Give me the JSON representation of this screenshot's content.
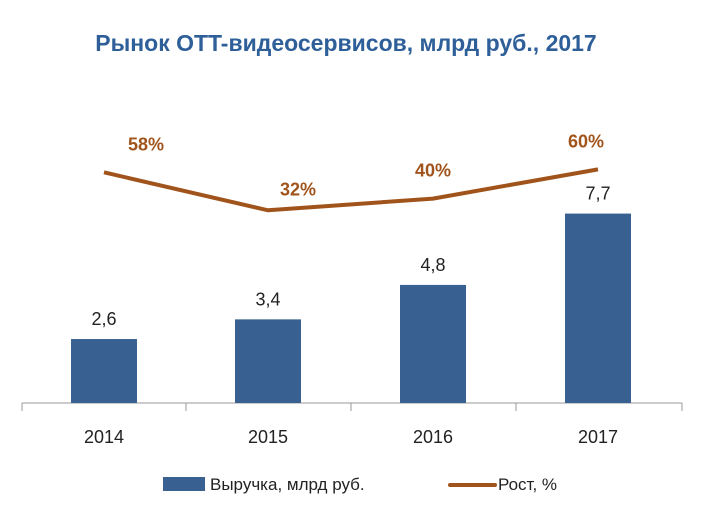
{
  "chart_data": {
    "type": "bar+line",
    "title": "Рынок OTT-видеосервисов, млрд руб., 2017",
    "categories": [
      "2014",
      "2015",
      "2016",
      "2017"
    ],
    "series": [
      {
        "name": "Выручка, млрд руб.",
        "type": "bar",
        "values": [
          2.6,
          3.4,
          4.8,
          7.7
        ],
        "labels": [
          "2,6",
          "3,4",
          "4,8",
          "7,7"
        ],
        "color": "#386192"
      },
      {
        "name": "Рост, %",
        "type": "line",
        "values": [
          58,
          32,
          40,
          60
        ],
        "labels": [
          "58%",
          "32%",
          "40%",
          "60%"
        ],
        "color": "#A0541B"
      }
    ],
    "legend": "bottom",
    "grid": false
  }
}
